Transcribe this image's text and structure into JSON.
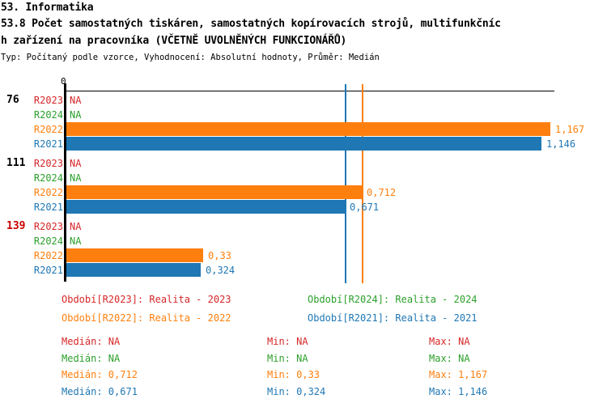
{
  "header": {
    "line1": "53. Informatika",
    "line2": "53.8 Počet samostatných tiskáren, samostatných kopírovacích strojů, multifunkčníc",
    "line3": "h zařízení na pracovníka (VČETNĚ UVOLNĚNÝCH FUNKCIONÁŘŮ)",
    "meta": "Typ: Počítaný podle vzorce, Vyhodnocení: Absolutní hodnoty, Průměr: Medián"
  },
  "chart_data": {
    "type": "bar",
    "orientation": "horizontal",
    "title": "53.8 Počet samostatných tiskáren, samostatných kopírovacích strojů, multifunkčních zařízení na pracovníka (VČETNĚ UVOLNĚNÝCH FUNKCIONÁŘŮ)",
    "categories": [
      "76",
      "111",
      "139"
    ],
    "category_colors": [
      "#000000",
      "#000000",
      "#cc0000"
    ],
    "series": [
      {
        "name": "R2023",
        "color": "#d62728",
        "values": [
          null,
          null,
          null
        ],
        "labels": [
          "NA",
          "NA",
          "NA"
        ]
      },
      {
        "name": "R2024",
        "color": "#2ca02c",
        "values": [
          null,
          null,
          null
        ],
        "labels": [
          "NA",
          "NA",
          "NA"
        ]
      },
      {
        "name": "R2022",
        "color": "#ff7f0e",
        "values": [
          1.167,
          0.712,
          0.33
        ],
        "labels": [
          "1,167",
          "0,712",
          "0,33"
        ]
      },
      {
        "name": "R2021",
        "color": "#1f77b4",
        "values": [
          1.146,
          0.671,
          0.324
        ],
        "labels": [
          "1,146",
          "0,671",
          "0,324"
        ]
      }
    ],
    "xlim": [
      0,
      1.18
    ],
    "x_zero_tick": "0",
    "grid": false,
    "legend_position": "bottom",
    "median_lines": [
      {
        "series": "R2021",
        "value": 0.671,
        "color": "#1f77b4"
      },
      {
        "series": "R2022",
        "value": 0.712,
        "color": "#ff7f0e"
      }
    ]
  },
  "legend": {
    "items": [
      {
        "text": "Období[R2023]: Realita - 2023",
        "color": "#d62728"
      },
      {
        "text": "Období[R2024]: Realita - 2024",
        "color": "#2ca02c"
      },
      {
        "text": "Období[R2022]: Realita - 2022",
        "color": "#ff7f0e"
      },
      {
        "text": "Období[R2021]: Realita - 2021",
        "color": "#1f77b4"
      }
    ]
  },
  "stats": {
    "rows": [
      {
        "color": "#d62728",
        "median": "Medián: NA",
        "min": "Min: NA",
        "max": "Max: NA"
      },
      {
        "color": "#2ca02c",
        "median": "Medián: NA",
        "min": "Min: NA",
        "max": "Max: NA"
      },
      {
        "color": "#ff7f0e",
        "median": "Medián: 0,712",
        "min": "Min: 0,33",
        "max": "Max: 1,167"
      },
      {
        "color": "#1f77b4",
        "median": "Medián: 0,671",
        "min": "Min: 0,324",
        "max": "Max: 1,146"
      }
    ]
  }
}
